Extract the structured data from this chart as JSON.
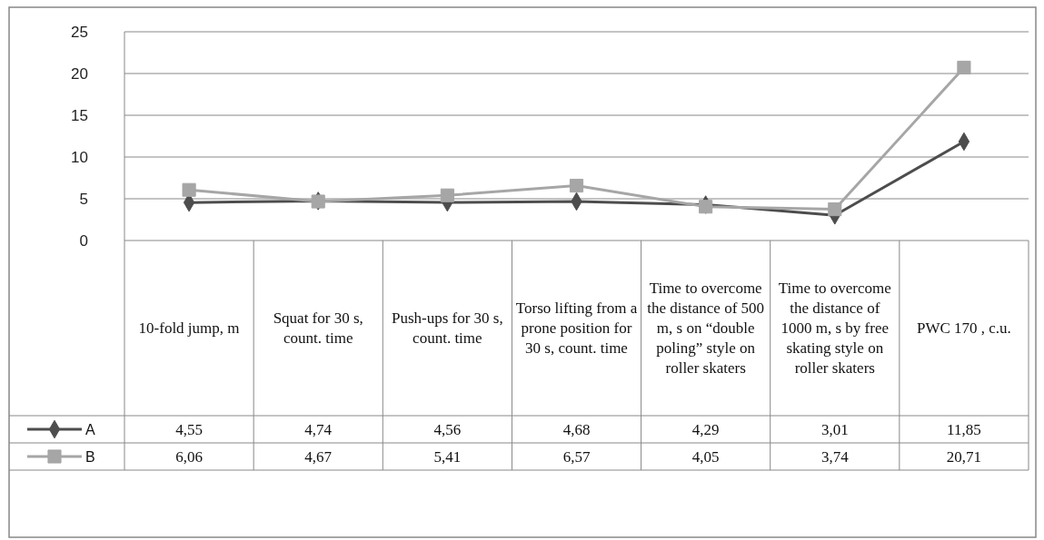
{
  "chart_data": {
    "type": "line",
    "categories": [
      "10-fold jump, m",
      "Squat for 30 s, count. time",
      "Push-ups for 30 s, count. time",
      "Torso lifting from a prone position for 30 s, count. time",
      "Time to overcome the distance of 500 m, s on “double poling” style on roller skaters",
      "Time to overcome the distance of 1000 m, s by free skating style on roller skaters",
      "PWC 170 , c.u."
    ],
    "series": [
      {
        "name": "A",
        "color": "#4d4d4d",
        "marker": "diamond",
        "values": [
          4.55,
          4.74,
          4.56,
          4.68,
          4.29,
          3.01,
          11.85
        ],
        "value_labels": [
          "4,55",
          "4,74",
          "4,56",
          "4,68",
          "4,29",
          "3,01",
          "11,85"
        ]
      },
      {
        "name": "B",
        "color": "#a6a6a6",
        "marker": "square",
        "values": [
          6.06,
          4.67,
          5.41,
          6.57,
          4.05,
          3.74,
          20.71
        ],
        "value_labels": [
          "6,06",
          "4,67",
          "5,41",
          "6,57",
          "4,05",
          "3,74",
          "20,71"
        ]
      }
    ],
    "ylim": [
      0,
      25
    ],
    "yticks": [
      0,
      5,
      10,
      15,
      20,
      25
    ],
    "grid": "y",
    "legend": "bottom left",
    "line_style": "solid"
  }
}
